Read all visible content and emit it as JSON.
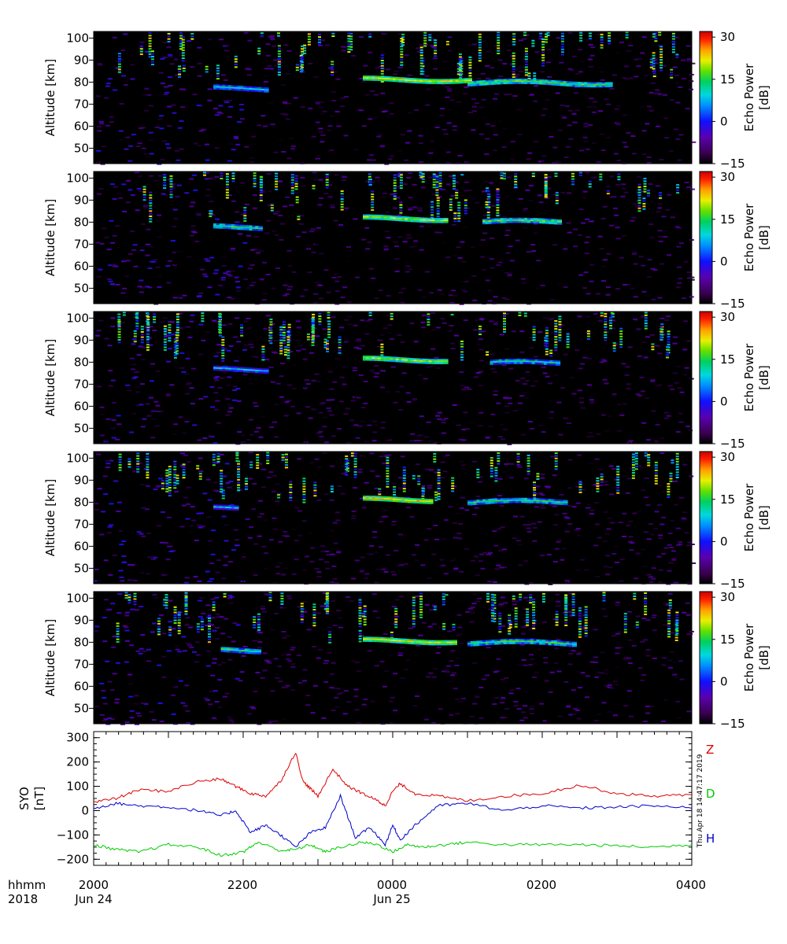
{
  "colorbar": {
    "label_line1": "Echo Power",
    "label_line2": "[dB]",
    "ticks": [
      "30",
      "15",
      "0",
      "−15"
    ],
    "tick_values": [
      30,
      15,
      0,
      -15
    ],
    "range": [
      -15,
      32
    ]
  },
  "panels_common": {
    "ylabel": "Altitude [km]",
    "yticks": [
      "100",
      "90",
      "80",
      "70",
      "60",
      "50"
    ],
    "ytick_values": [
      100,
      90,
      80,
      70,
      60,
      50
    ],
    "ylim": [
      43,
      103
    ]
  },
  "mag": {
    "ylabel_line1": "SYO",
    "ylabel_line2": "[nT]",
    "yticks": [
      "300",
      "200",
      "100",
      "0",
      "−100",
      "−200"
    ],
    "ytick_values": [
      300,
      200,
      100,
      0,
      -100,
      -200
    ],
    "ylim": [
      -225,
      325
    ],
    "legend": [
      {
        "label": "Z",
        "color": "#dd0000"
      },
      {
        "label": "D",
        "color": "#00cc00"
      },
      {
        "label": "H",
        "color": "#0000cc"
      }
    ],
    "stamp": "Thu Apr 18 14:47:17 2019"
  },
  "time_axis": {
    "row1_label": "hhmm",
    "row2_label": "2018",
    "ticks": [
      "2000",
      "2200",
      "0000",
      "0200",
      "0400"
    ],
    "dates": [
      "Jun 24",
      "Jun 25"
    ]
  },
  "chart_data": [
    {
      "type": "heatmap",
      "panel": 1,
      "x_range_hours": [
        20,
        28
      ],
      "ylim": [
        43,
        103
      ],
      "echo_layers": [
        {
          "t_start": 21.6,
          "t_end": 22.3,
          "alt": 77.5,
          "power_db": 8
        },
        {
          "t_start": 23.6,
          "t_end": 25.0,
          "alt": 81.5,
          "power_db": 20
        },
        {
          "t_start": 25.0,
          "t_end": 26.9,
          "alt": 80,
          "power_db": 14
        }
      ]
    },
    {
      "type": "heatmap",
      "panel": 2,
      "x_range_hours": [
        20,
        28
      ],
      "ylim": [
        43,
        103
      ],
      "echo_layers": [
        {
          "t_start": 21.6,
          "t_end": 22.2,
          "alt": 78,
          "power_db": 12
        },
        {
          "t_start": 23.6,
          "t_end": 24.7,
          "alt": 82,
          "power_db": 18
        },
        {
          "t_start": 25.2,
          "t_end": 26.2,
          "alt": 80.5,
          "power_db": 14
        }
      ]
    },
    {
      "type": "heatmap",
      "panel": 3,
      "x_range_hours": [
        20,
        28
      ],
      "ylim": [
        43,
        103
      ],
      "echo_layers": [
        {
          "t_start": 21.6,
          "t_end": 22.3,
          "alt": 77,
          "power_db": 6
        },
        {
          "t_start": 23.6,
          "t_end": 24.7,
          "alt": 81.5,
          "power_db": 18
        },
        {
          "t_start": 25.3,
          "t_end": 26.2,
          "alt": 80,
          "power_db": 10
        }
      ]
    },
    {
      "type": "heatmap",
      "panel": 4,
      "x_range_hours": [
        20,
        28
      ],
      "ylim": [
        43,
        103
      ],
      "echo_layers": [
        {
          "t_start": 21.6,
          "t_end": 21.9,
          "alt": 77.5,
          "power_db": 6
        },
        {
          "t_start": 23.6,
          "t_end": 24.5,
          "alt": 81.5,
          "power_db": 22
        },
        {
          "t_start": 25.0,
          "t_end": 26.3,
          "alt": 80.5,
          "power_db": 12
        }
      ]
    },
    {
      "type": "heatmap",
      "panel": 5,
      "x_range_hours": [
        20,
        28
      ],
      "ylim": [
        43,
        103
      ],
      "echo_layers": [
        {
          "t_start": 21.7,
          "t_end": 22.2,
          "alt": 76.5,
          "power_db": 12
        },
        {
          "t_start": 23.6,
          "t_end": 24.8,
          "alt": 81,
          "power_db": 20
        },
        {
          "t_start": 25.0,
          "t_end": 26.4,
          "alt": 80,
          "power_db": 12
        }
      ]
    },
    {
      "type": "line",
      "panel": 6,
      "x_range_hours": [
        20,
        28
      ],
      "ylim": [
        -225,
        325
      ],
      "series": [
        {
          "name": "Z",
          "color": "#dd0000",
          "x": [
            20.0,
            20.3,
            20.6,
            21.0,
            21.4,
            21.7,
            21.9,
            22.1,
            22.3,
            22.5,
            22.7,
            22.8,
            22.9,
            23.0,
            23.2,
            23.4,
            23.6,
            23.8,
            23.9,
            24.0,
            24.1,
            24.3,
            24.6,
            25.0,
            25.5,
            26.0,
            26.5,
            27.0,
            27.5,
            28.0
          ],
          "y": [
            35,
            50,
            85,
            80,
            120,
            130,
            100,
            70,
            60,
            120,
            240,
            120,
            90,
            60,
            170,
            100,
            70,
            40,
            20,
            80,
            110,
            70,
            60,
            40,
            60,
            70,
            105,
            70,
            60,
            65
          ]
        },
        {
          "name": "D",
          "color": "#00cc00",
          "x": [
            20.0,
            20.3,
            20.6,
            21.0,
            21.4,
            21.7,
            22.0,
            22.2,
            22.5,
            22.7,
            22.9,
            23.1,
            23.3,
            23.6,
            23.8,
            24.0,
            24.2,
            24.4,
            24.7,
            25.0,
            25.5,
            26.0,
            26.5,
            27.0,
            27.5,
            28.0
          ],
          "y": [
            -140,
            -160,
            -170,
            -140,
            -150,
            -185,
            -170,
            -130,
            -165,
            -160,
            -140,
            -170,
            -150,
            -130,
            -140,
            -170,
            -140,
            -150,
            -140,
            -130,
            -140,
            -140,
            -140,
            -145,
            -150,
            -140
          ]
        },
        {
          "name": "H",
          "color": "#0000cc",
          "x": [
            20.0,
            20.3,
            20.6,
            21.0,
            21.4,
            21.7,
            21.9,
            22.1,
            22.3,
            22.5,
            22.7,
            22.9,
            23.1,
            23.3,
            23.5,
            23.7,
            23.9,
            24.0,
            24.1,
            24.3,
            24.6,
            25.0,
            25.5,
            26.0,
            26.5,
            27.0,
            27.5,
            28.0
          ],
          "y": [
            10,
            30,
            20,
            15,
            0,
            -20,
            0,
            -90,
            -60,
            -100,
            -150,
            -90,
            -70,
            60,
            -110,
            -70,
            -140,
            -60,
            -120,
            -60,
            20,
            30,
            0,
            20,
            10,
            15,
            20,
            10
          ]
        }
      ]
    }
  ]
}
